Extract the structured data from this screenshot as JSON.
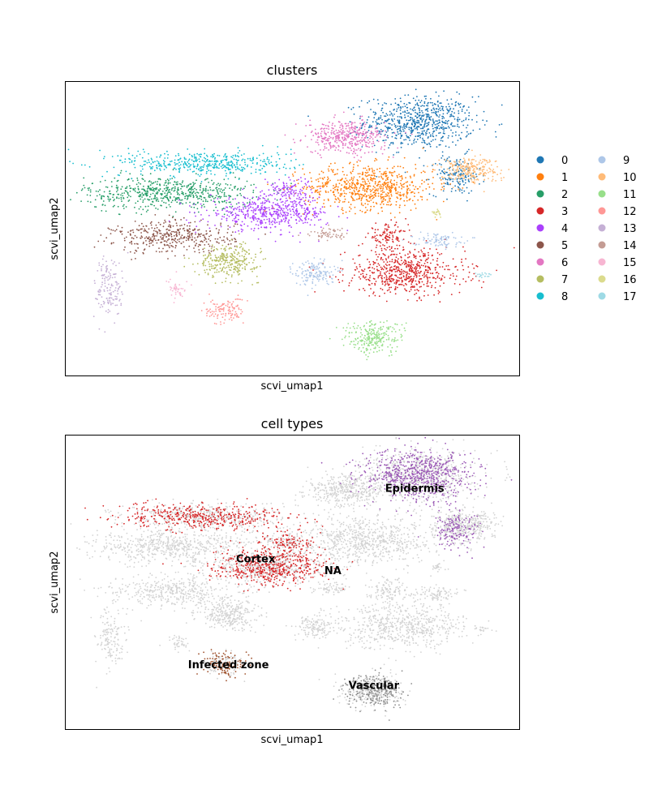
{
  "chart_data": [
    {
      "type": "scatter",
      "title": "clusters",
      "xlabel": "scvi_umap1",
      "ylabel": "scvi_umap2",
      "xlim": [
        0,
        100
      ],
      "ylim": [
        0,
        100
      ],
      "grid": false,
      "legend_position": "right",
      "series": [
        {
          "name": "0",
          "color": "#1f77b4",
          "blobs": [
            {
              "x": 78,
              "y": 86,
              "rx": 11,
              "ry": 8,
              "n": 700
            },
            {
              "x": 86,
              "y": 68,
              "rx": 5,
              "ry": 6,
              "n": 160
            }
          ]
        },
        {
          "name": "1",
          "color": "#ff7f0e",
          "blobs": [
            {
              "x": 67,
              "y": 64,
              "rx": 13,
              "ry": 7,
              "n": 700
            }
          ]
        },
        {
          "name": "2",
          "color": "#279e68",
          "blobs": [
            {
              "x": 23,
              "y": 62,
              "rx": 17,
              "ry": 5,
              "n": 600
            }
          ]
        },
        {
          "name": "3",
          "color": "#d62728",
          "blobs": [
            {
              "x": 75,
              "y": 35,
              "rx": 12,
              "ry": 7,
              "n": 600
            },
            {
              "x": 71,
              "y": 47,
              "rx": 4,
              "ry": 4,
              "n": 120
            }
          ]
        },
        {
          "name": "4",
          "color": "#aa40fc",
          "blobs": [
            {
              "x": 45,
              "y": 55,
              "rx": 12,
              "ry": 5,
              "n": 500
            },
            {
              "x": 49,
              "y": 63,
              "rx": 5,
              "ry": 4,
              "n": 120
            }
          ]
        },
        {
          "name": "5",
          "color": "#8c564b",
          "blobs": [
            {
              "x": 24,
              "y": 47,
              "rx": 12,
              "ry": 5,
              "n": 400
            }
          ]
        },
        {
          "name": "6",
          "color": "#e377c2",
          "blobs": [
            {
              "x": 62,
              "y": 81,
              "rx": 8,
              "ry": 5,
              "n": 400
            }
          ]
        },
        {
          "name": "7",
          "color": "#b5bd61",
          "blobs": [
            {
              "x": 36,
              "y": 39,
              "rx": 6,
              "ry": 5,
              "n": 300
            }
          ]
        },
        {
          "name": "8",
          "color": "#17becf",
          "blobs": [
            {
              "x": 31,
              "y": 72,
              "rx": 17,
              "ry": 4,
              "n": 450
            }
          ]
        },
        {
          "name": "9",
          "color": "#aec7e8",
          "blobs": [
            {
              "x": 55,
              "y": 35,
              "rx": 4,
              "ry": 4,
              "n": 150
            },
            {
              "x": 82,
              "y": 46,
              "rx": 5,
              "ry": 2,
              "n": 90
            }
          ]
        },
        {
          "name": "10",
          "color": "#ffbb78",
          "blobs": [
            {
              "x": 89,
              "y": 70,
              "rx": 6,
              "ry": 4,
              "n": 250
            }
          ]
        },
        {
          "name": "11",
          "color": "#98df8a",
          "blobs": [
            {
              "x": 68,
              "y": 13,
              "rx": 6,
              "ry": 5,
              "n": 250
            }
          ]
        },
        {
          "name": "12",
          "color": "#ff9896",
          "blobs": [
            {
              "x": 35,
              "y": 22,
              "rx": 4,
              "ry": 4,
              "n": 120
            }
          ]
        },
        {
          "name": "13",
          "color": "#c5b0d5",
          "blobs": [
            {
              "x": 10,
              "y": 30,
              "rx": 3,
              "ry": 10,
              "n": 150
            }
          ]
        },
        {
          "name": "14",
          "color": "#c49c94",
          "blobs": [
            {
              "x": 58,
              "y": 48,
              "rx": 4,
              "ry": 2,
              "n": 60
            }
          ]
        },
        {
          "name": "15",
          "color": "#f7b6d2",
          "blobs": [
            {
              "x": 25,
              "y": 29,
              "rx": 2,
              "ry": 3,
              "n": 40
            }
          ]
        },
        {
          "name": "16",
          "color": "#dbdb8d",
          "blobs": [
            {
              "x": 82,
              "y": 55,
              "rx": 1,
              "ry": 1,
              "n": 20
            }
          ]
        },
        {
          "name": "17",
          "color": "#9edae5",
          "blobs": [
            {
              "x": 92,
              "y": 34,
              "rx": 2,
              "ry": 1,
              "n": 20
            }
          ]
        }
      ]
    },
    {
      "type": "scatter",
      "title": "cell types",
      "xlabel": "scvi_umap1",
      "ylabel": "scvi_umap2",
      "xlim": [
        0,
        100
      ],
      "ylim": [
        0,
        100
      ],
      "grid": false,
      "legend_position": "on data",
      "background_color": "#d3d3d3",
      "series": [
        {
          "name": "Epidermis",
          "color": "#9b59b6",
          "label_x": 77,
          "label_y": 82,
          "blobs": [
            {
              "x": 78,
              "y": 86,
              "rx": 11,
              "ry": 8,
              "n": 700
            },
            {
              "x": 86,
              "y": 68,
              "rx": 5,
              "ry": 6,
              "n": 160
            }
          ]
        },
        {
          "name": "Cortex",
          "color": "#d62728",
          "label_x": 42,
          "label_y": 58,
          "blobs": [
            {
              "x": 31,
              "y": 72,
              "rx": 17,
              "ry": 4,
              "n": 450
            },
            {
              "x": 45,
              "y": 55,
              "rx": 12,
              "ry": 5,
              "n": 500
            },
            {
              "x": 49,
              "y": 63,
              "rx": 5,
              "ry": 4,
              "n": 120
            }
          ]
        },
        {
          "name": "NA",
          "color": "#d3d3d3",
          "label_x": 59,
          "label_y": 54
        },
        {
          "name": "Infected zone",
          "color": "#a0522d",
          "label_x": 36,
          "label_y": 22,
          "blobs": [
            {
              "x": 35,
              "y": 22,
              "rx": 4,
              "ry": 4,
              "n": 120
            }
          ]
        },
        {
          "name": "Vascular",
          "color": "#8c8c8c",
          "label_x": 68,
          "label_y": 15,
          "blobs": [
            {
              "x": 68,
              "y": 13,
              "rx": 6,
              "ry": 5,
              "n": 250
            }
          ]
        }
      ]
    }
  ]
}
